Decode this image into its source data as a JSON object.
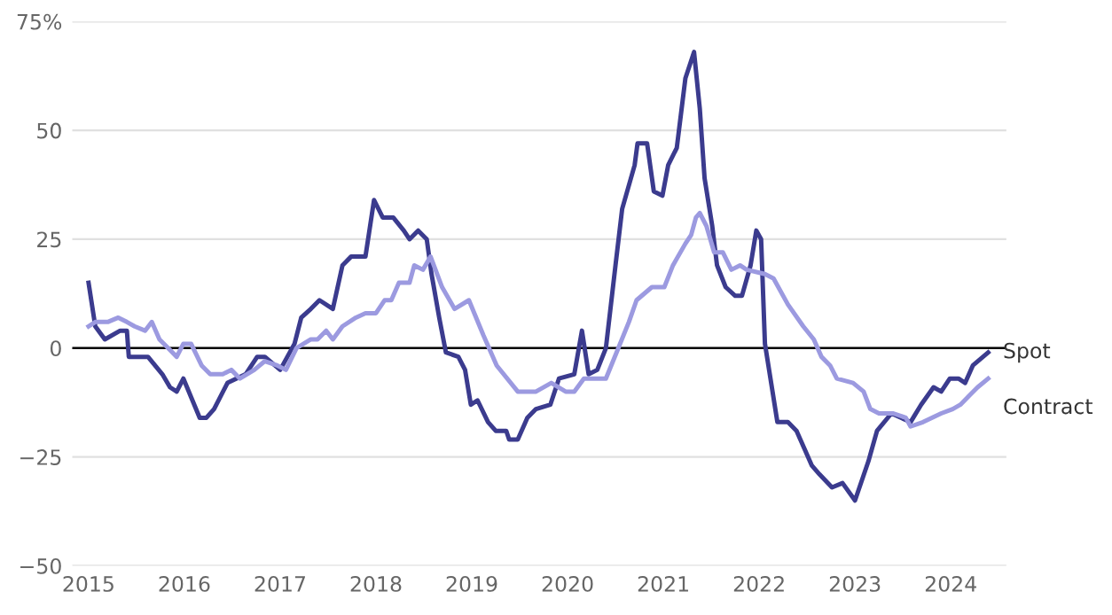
{
  "chart_data": {
    "type": "line",
    "ylim": [
      -50,
      75
    ],
    "yticks": [
      {
        "value": -50,
        "label": "−50"
      },
      {
        "value": -25,
        "label": "−25"
      },
      0,
      25,
      50,
      {
        "value": 75,
        "label": "75%"
      }
    ],
    "xlim": [
      2014.83,
      2024.58
    ],
    "xticks": [
      2015,
      2016,
      2017,
      2018,
      2019,
      2020,
      2021,
      2022,
      2023,
      2024
    ],
    "grid": "y",
    "ref_lines": [
      {
        "axis": "y",
        "value": 0,
        "color": "#000000"
      }
    ],
    "series": [
      {
        "name": "Spot",
        "color": "#3b3b8e",
        "x": [
          2015.0,
          2015.07,
          2015.17,
          2015.33,
          2015.4,
          2015.42,
          2015.59,
          2015.62,
          2015.77,
          2015.85,
          2015.92,
          2015.99,
          2016.16,
          2016.23,
          2016.31,
          2016.45,
          2016.64,
          2016.76,
          2016.84,
          2017.0,
          2017.15,
          2017.22,
          2017.32,
          2017.41,
          2017.55,
          2017.65,
          2017.74,
          2017.89,
          2017.98,
          2018.07,
          2018.18,
          2018.29,
          2018.35,
          2018.44,
          2018.53,
          2018.58,
          2018.66,
          2018.73,
          2018.86,
          2018.93,
          2018.99,
          2019.06,
          2019.17,
          2019.25,
          2019.36,
          2019.39,
          2019.48,
          2019.58,
          2019.67,
          2019.82,
          2019.91,
          2020.07,
          2020.15,
          2020.22,
          2020.31,
          2020.4,
          2020.5,
          2020.57,
          2020.7,
          2020.73,
          2020.83,
          2020.9,
          2020.99,
          2021.05,
          2021.14,
          2021.23,
          2021.32,
          2021.38,
          2021.43,
          2021.51,
          2021.56,
          2021.65,
          2021.75,
          2021.82,
          2021.91,
          2021.97,
          2022.02,
          2022.06,
          2022.19,
          2022.3,
          2022.39,
          2022.55,
          2022.63,
          2022.76,
          2022.87,
          2023.0,
          2023.14,
          2023.23,
          2023.38,
          2023.58,
          2023.69,
          2023.82,
          2023.9,
          2023.99,
          2024.08,
          2024.15,
          2024.23,
          2024.39
        ],
        "values": [
          15,
          5,
          2,
          4,
          4,
          -2,
          -2,
          -2,
          -6,
          -9,
          -10,
          -7,
          -16,
          -16,
          -14,
          -8,
          -6,
          -2,
          -2,
          -5,
          1,
          7,
          9,
          11,
          9,
          19,
          21,
          21,
          34,
          30,
          30,
          27,
          25,
          27,
          25,
          17,
          7,
          -1,
          -2,
          -5,
          -13,
          -12,
          -17,
          -19,
          -19,
          -21,
          -21,
          -16,
          -14,
          -13,
          -7,
          -6,
          4,
          -6,
          -5,
          0,
          19,
          32,
          42,
          47,
          47,
          36,
          35,
          42,
          46,
          62,
          68,
          55,
          39,
          28,
          19,
          14,
          12,
          12,
          19,
          27,
          25,
          1,
          -17,
          -17,
          -19,
          -27,
          -29,
          -32,
          -31,
          -35,
          -26,
          -19,
          -15,
          -17,
          -13,
          -9,
          -10,
          -7,
          -7,
          -8,
          -4,
          -1
        ]
      },
      {
        "name": "Contract",
        "color": "#9c9ae0",
        "x": [
          2015.0,
          2015.07,
          2015.2,
          2015.31,
          2015.4,
          2015.48,
          2015.59,
          2015.66,
          2015.74,
          2015.83,
          2015.92,
          2015.99,
          2016.07,
          2016.18,
          2016.27,
          2016.4,
          2016.49,
          2016.58,
          2016.73,
          2016.84,
          2016.97,
          2017.06,
          2017.17,
          2017.32,
          2017.39,
          2017.48,
          2017.55,
          2017.65,
          2017.79,
          2017.89,
          2018.0,
          2018.09,
          2018.16,
          2018.24,
          2018.35,
          2018.4,
          2018.49,
          2018.57,
          2018.69,
          2018.82,
          2018.97,
          2019.12,
          2019.26,
          2019.48,
          2019.67,
          2019.83,
          2019.98,
          2020.07,
          2020.17,
          2020.4,
          2020.53,
          2020.64,
          2020.72,
          2020.88,
          2021.01,
          2021.1,
          2021.23,
          2021.29,
          2021.34,
          2021.38,
          2021.45,
          2021.53,
          2021.62,
          2021.71,
          2021.8,
          2021.87,
          2022.06,
          2022.15,
          2022.3,
          2022.46,
          2022.57,
          2022.65,
          2022.74,
          2022.81,
          2022.98,
          2023.09,
          2023.16,
          2023.25,
          2023.4,
          2023.53,
          2023.58,
          2023.71,
          2023.9,
          2024.02,
          2024.1,
          2024.19,
          2024.28,
          2024.39
        ],
        "values": [
          5,
          6,
          6,
          7,
          6,
          5,
          4,
          6,
          2,
          0,
          -2,
          1,
          1,
          -4,
          -6,
          -6,
          -5,
          -7,
          -5,
          -3,
          -4,
          -5,
          0,
          2,
          2,
          4,
          2,
          5,
          7,
          8,
          8,
          11,
          11,
          15,
          15,
          19,
          18,
          21,
          14,
          9,
          11,
          3,
          -4,
          -10,
          -10,
          -8,
          -10,
          -10,
          -7,
          -7,
          0,
          6,
          11,
          14,
          14,
          19,
          24,
          26,
          30,
          31,
          28,
          22,
          22,
          18,
          19,
          18,
          17,
          16,
          10,
          5,
          2,
          -2,
          -4,
          -7,
          -8,
          -10,
          -14,
          -15,
          -15,
          -16,
          -18,
          -17,
          -15,
          -14,
          -13,
          -11,
          -9,
          -7
        ]
      }
    ]
  }
}
